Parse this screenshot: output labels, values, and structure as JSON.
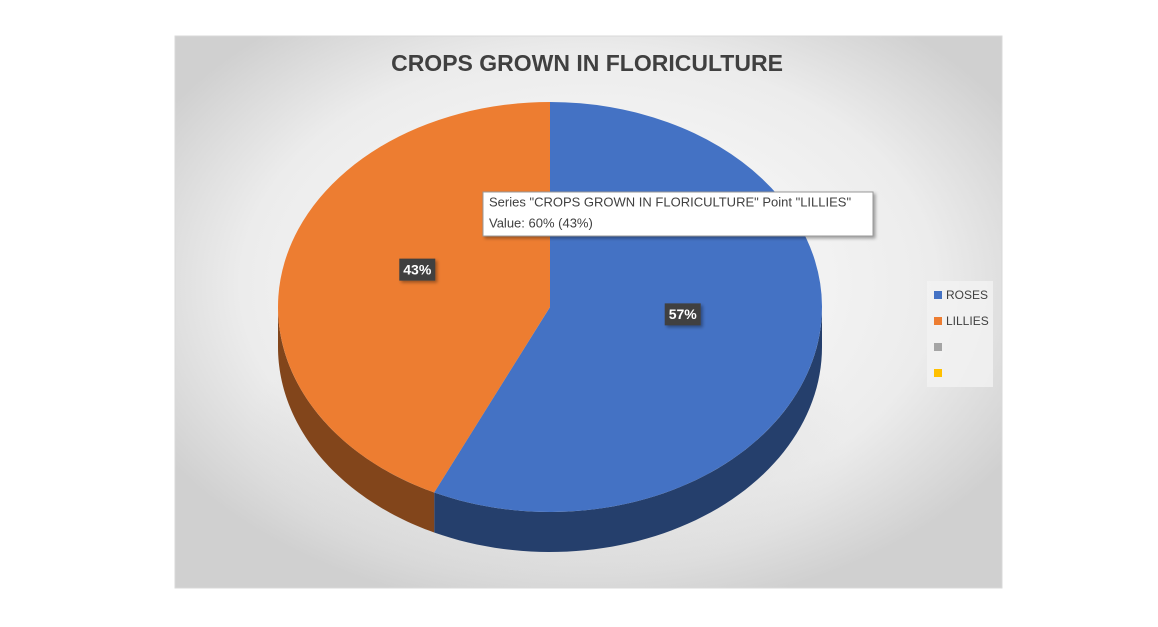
{
  "chart_data": {
    "type": "pie",
    "title": "CROPS GROWN IN FLORICULTURE",
    "categories": [
      "ROSES",
      "LILLIES",
      null,
      null
    ],
    "values": [
      57,
      43,
      null,
      null
    ],
    "value_labels": [
      "57%",
      "43%",
      null,
      null
    ],
    "colors": [
      "#4472c4",
      "#ed7d31",
      "#a5a5a5",
      "#ffc000"
    ],
    "legend": "right",
    "tooltip": [
      "Series \"CROPS GROWN IN FLORICULTURE\" Point \"LILLIES\"",
      "Value: 60% (43%)"
    ]
  }
}
